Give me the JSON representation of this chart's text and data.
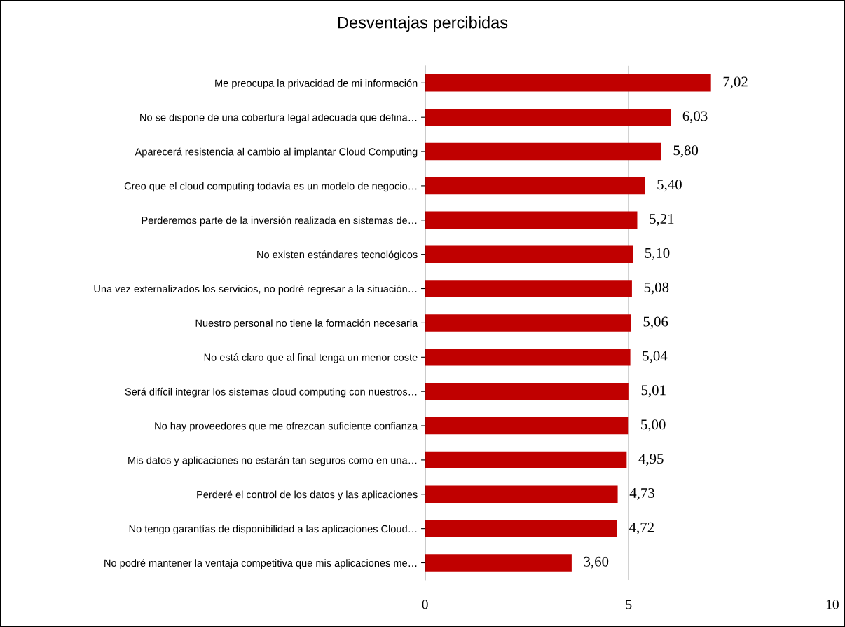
{
  "chart_data": {
    "type": "bar",
    "orientation": "horizontal",
    "title": "Desventajas percibidas",
    "categories": [
      "Me preocupa la privacidad de mi información",
      "No se dispone de una cobertura legal adecuada que defina…",
      "Aparecerá resistencia al cambio al implantar Cloud Computing",
      "Creo que el cloud computing todavía es un modelo de negocio…",
      "Perderemos parte de la inversión realizada en sistemas de…",
      "No existen estándares tecnológicos",
      "Una vez externalizados los servicios, no podré regresar a la situación…",
      "Nuestro personal no tiene la formación necesaria",
      "No está claro que al final tenga un menor coste",
      "Será difícil integrar los sistemas cloud computing con nuestros…",
      "No hay proveedores que me ofrezcan suficiente confianza",
      "Mis datos y aplicaciones no estarán tan seguros como en una…",
      "Perderé el control de los datos y las aplicaciones",
      "No tengo garantías de disponibilidad a las aplicaciones Cloud…",
      "No podré mantener la ventaja competitiva que mis aplicaciones me…"
    ],
    "values": [
      7.02,
      6.03,
      5.8,
      5.4,
      5.21,
      5.1,
      5.08,
      5.06,
      5.04,
      5.01,
      5.0,
      4.95,
      4.73,
      4.72,
      3.6
    ],
    "value_labels": [
      "7,02",
      "6,03",
      "5,80",
      "5,40",
      "5,21",
      "5,10",
      "5,08",
      "5,06",
      "5,04",
      "5,01",
      "5,00",
      "4,95",
      "4,73",
      "4,72",
      "3,60"
    ],
    "color": "#c00000",
    "xlim": [
      0,
      10
    ],
    "xticks": [
      0,
      5,
      10
    ],
    "grid": "x",
    "legend": false
  }
}
